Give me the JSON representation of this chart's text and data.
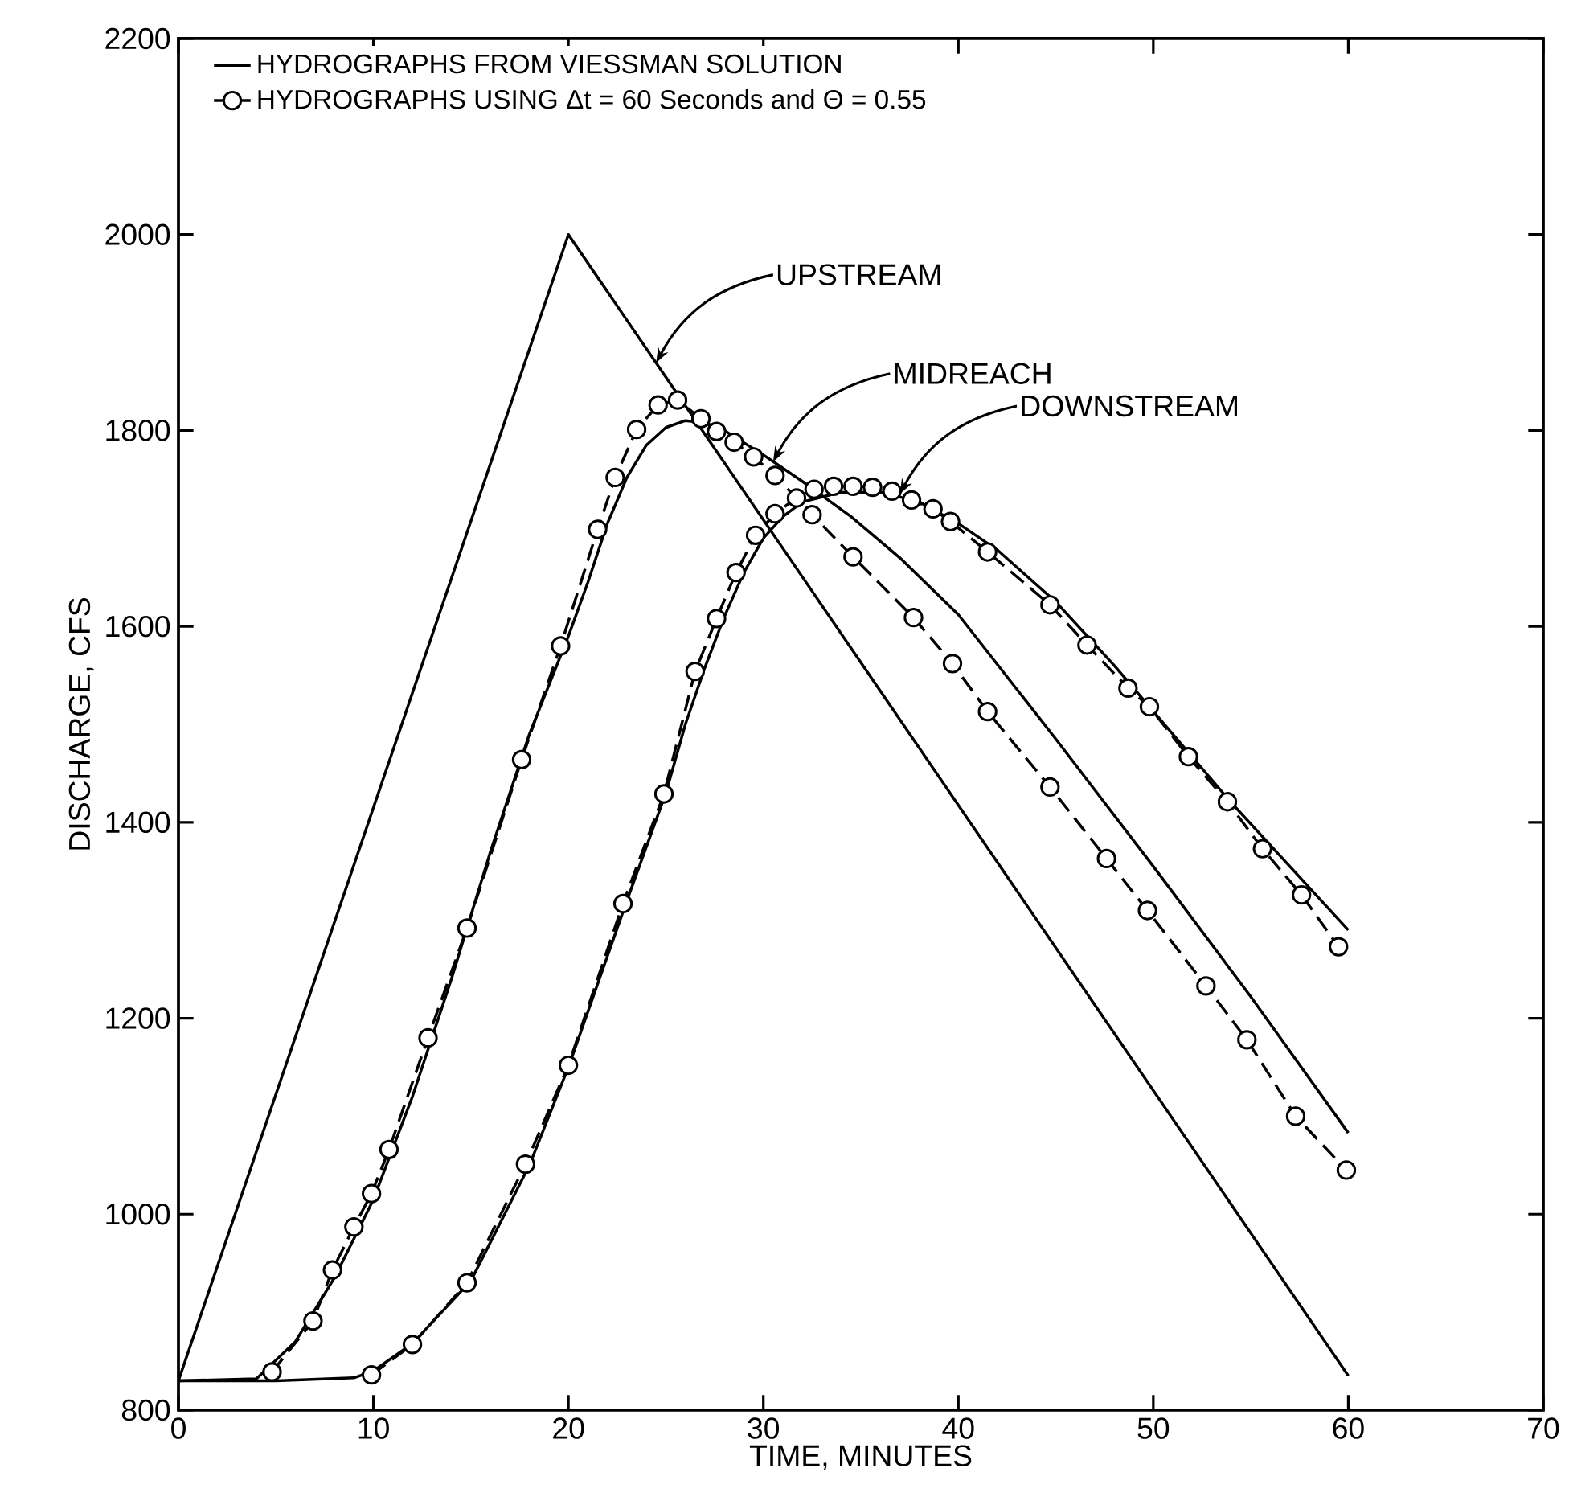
{
  "chart_data": {
    "type": "line",
    "xlabel": "TIME, MINUTES",
    "ylabel": "DISCHARGE, CFS",
    "xlim": [
      0,
      70
    ],
    "xticks": [
      0,
      10,
      20,
      30,
      40,
      50,
      60,
      70
    ],
    "ylim": [
      800,
      2200
    ],
    "yticks": [
      800,
      1000,
      1200,
      1400,
      1600,
      1800,
      2000,
      2200
    ],
    "grid": false,
    "legend": "top left",
    "series": [
      {
        "name": "HYDROGRAPHS FROM VIESSMAN SOLUTION",
        "color": "#000000",
        "line_style": "solid",
        "marker": "none",
        "x": [
          0,
          20,
          60
        ],
        "values": [
          830,
          2000,
          835
        ]
      },
      {
        "color": "#000000",
        "line_style": "solid",
        "marker": "none",
        "x": [
          0,
          4,
          6,
          8,
          10,
          12,
          14,
          16,
          18,
          20,
          21,
          22,
          23,
          24,
          25,
          26,
          27,
          28,
          30,
          32,
          34.5,
          37,
          40,
          45,
          50,
          55,
          60
        ],
        "values": [
          830,
          832,
          870,
          935,
          1015,
          1120,
          1240,
          1370,
          1490,
          1590,
          1645,
          1705,
          1752,
          1785,
          1803,
          1810,
          1808,
          1800,
          1775,
          1748,
          1712,
          1670,
          1612,
          1485,
          1355,
          1222,
          1083
        ]
      },
      {
        "color": "#000000",
        "line_style": "solid",
        "marker": "none",
        "x": [
          0,
          5,
          9,
          10,
          12,
          15,
          18,
          20,
          23,
          25,
          26,
          27,
          28,
          29,
          30,
          31,
          32,
          34,
          36,
          38,
          40,
          42,
          45,
          48,
          51,
          54,
          57,
          60
        ],
        "values": [
          830,
          830,
          833,
          840,
          868,
          932,
          1050,
          1150,
          1320,
          1430,
          1500,
          1558,
          1610,
          1655,
          1690,
          1712,
          1727,
          1737,
          1737,
          1727,
          1705,
          1678,
          1625,
          1560,
          1490,
          1420,
          1355,
          1290
        ]
      },
      {
        "name": "HYDROGRAPHS USING Δt = 60 Seconds and Θ = 0.55",
        "color": "#000000",
        "line_style": "dashed",
        "marker": "circle",
        "x": [
          4.8,
          6.9,
          7.9,
          9.0,
          9.9,
          10.8,
          12.8,
          14.8,
          17.6,
          19.6,
          21.5,
          22.4,
          23.5,
          24.6,
          25.6,
          26.8,
          27.6,
          28.5,
          29.5,
          30.6,
          32.5,
          34.6,
          37.7,
          39.7,
          41.5,
          44.7,
          47.6,
          49.7,
          52.7,
          54.8,
          57.3,
          59.9
        ],
        "values": [
          839,
          891,
          943,
          987,
          1021,
          1066,
          1180,
          1292,
          1464,
          1580,
          1699,
          1752,
          1801,
          1826,
          1831,
          1812,
          1799,
          1788,
          1773,
          1754,
          1714,
          1671,
          1609,
          1562,
          1513,
          1436,
          1363,
          1310,
          1233,
          1178,
          1100,
          1045
        ]
      },
      {
        "color": "#000000",
        "line_style": "dashed",
        "marker": "circle",
        "x": [
          9.9,
          12.0,
          14.8,
          17.8,
          20.0,
          22.8,
          24.9,
          26.5,
          27.6,
          28.6,
          29.6,
          30.6,
          31.7,
          32.6,
          33.6,
          34.6,
          35.6,
          36.6,
          37.6,
          38.7,
          39.6,
          41.5,
          44.7,
          46.6,
          48.7,
          49.8,
          51.8,
          53.8,
          55.6,
          57.6,
          59.5
        ],
        "values": [
          836,
          867,
          930,
          1051,
          1152,
          1317,
          1429,
          1554,
          1608,
          1655,
          1693,
          1715,
          1731,
          1740,
          1743,
          1743,
          1742,
          1738,
          1729,
          1720,
          1707,
          1676,
          1622,
          1581,
          1537,
          1518,
          1467,
          1421,
          1373,
          1326,
          1273
        ]
      }
    ],
    "annotations": [
      {
        "text": "UPSTREAM",
        "x": 24.5,
        "y": 1869
      },
      {
        "text": "MIDREACH",
        "x": 30.5,
        "y": 1768
      },
      {
        "text": "DOWNSTREAM",
        "x": 37,
        "y": 1735
      }
    ]
  }
}
